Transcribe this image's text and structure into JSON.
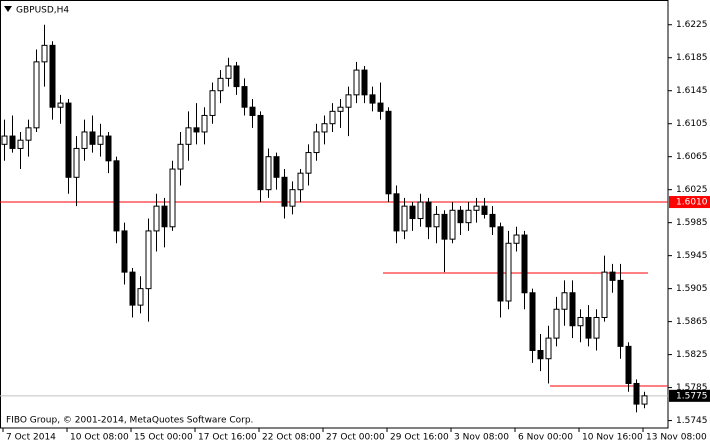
{
  "chart_data": {
    "type": "candlestick",
    "title": "GBPUSD,H4",
    "footer": "FIBO Group, © 2001-2014, MetaQuotes Software Corp.",
    "open": [
      1.608,
      1.609,
      1.6075,
      1.6085,
      1.61,
      1.618,
      1.62,
      1.6125,
      1.613,
      1.604,
      1.6075,
      1.6095,
      1.608,
      1.609,
      1.606,
      1.5975,
      1.5925,
      1.5885,
      1.5905,
      1.5975,
      1.6005,
      1.598,
      1.605,
      1.608,
      1.61,
      1.6095,
      1.6115,
      1.6145,
      1.616,
      1.6175,
      1.615,
      1.6125,
      1.6115,
      1.6025,
      1.6065,
      1.604,
      1.6005,
      1.6025,
      1.6045,
      1.607,
      1.6095,
      1.6105,
      1.612,
      1.6125,
      1.614,
      1.617,
      1.614,
      1.613,
      1.612,
      1.602,
      1.5975,
      1.6005,
      1.599,
      1.601,
      1.598,
      1.5995,
      1.5965,
      1.6,
      1.5985,
      1.6,
      1.6005,
      1.5995,
      1.598,
      1.589,
      1.596,
      1.597,
      1.59,
      1.583,
      1.582,
      1.5845,
      1.588,
      1.59,
      1.586,
      1.587,
      1.5845,
      1.587,
      1.5925,
      1.5915,
      1.5835,
      1.579,
      1.5765
    ],
    "high": [
      1.611,
      1.6115,
      1.6095,
      1.611,
      1.6195,
      1.6225,
      1.6205,
      1.614,
      1.6135,
      1.609,
      1.611,
      1.6115,
      1.6105,
      1.6095,
      1.6065,
      1.5985,
      1.593,
      1.592,
      1.599,
      1.602,
      1.6015,
      1.606,
      1.6095,
      1.612,
      1.613,
      1.6125,
      1.6155,
      1.617,
      1.6185,
      1.618,
      1.616,
      1.6135,
      1.612,
      1.6075,
      1.607,
      1.605,
      1.6035,
      1.605,
      1.608,
      1.6105,
      1.6115,
      1.613,
      1.6135,
      1.615,
      1.618,
      1.6175,
      1.615,
      1.6155,
      1.6125,
      1.603,
      1.6015,
      1.601,
      1.602,
      1.6015,
      1.6005,
      1.6,
      1.601,
      1.6005,
      1.601,
      1.6015,
      1.6015,
      1.6005,
      1.5985,
      1.5975,
      1.598,
      1.5975,
      1.5905,
      1.585,
      1.586,
      1.5895,
      1.5915,
      1.5915,
      1.588,
      1.5885,
      1.588,
      1.5945,
      1.5935,
      1.5935,
      1.584,
      1.5795,
      1.578
    ],
    "low": [
      1.606,
      1.607,
      1.605,
      1.6065,
      1.6095,
      1.615,
      1.611,
      1.6105,
      1.602,
      1.6005,
      1.606,
      1.607,
      1.6065,
      1.6045,
      1.596,
      1.591,
      1.587,
      1.5875,
      1.5865,
      1.595,
      1.5955,
      1.5975,
      1.603,
      1.606,
      1.608,
      1.608,
      1.6105,
      1.613,
      1.615,
      1.614,
      1.6115,
      1.61,
      1.601,
      1.6015,
      1.6025,
      1.599,
      1.5995,
      1.601,
      1.603,
      1.606,
      1.608,
      1.6095,
      1.61,
      1.609,
      1.613,
      1.613,
      1.612,
      1.611,
      1.601,
      1.596,
      1.5965,
      1.5975,
      1.598,
      1.5965,
      1.596,
      1.5925,
      1.596,
      1.597,
      1.5975,
      1.5985,
      1.599,
      1.597,
      1.587,
      1.588,
      1.595,
      1.588,
      1.5815,
      1.5805,
      1.579,
      1.5835,
      1.586,
      1.5845,
      1.584,
      1.5835,
      1.583,
      1.5865,
      1.59,
      1.582,
      1.578,
      1.5755,
      1.576
    ],
    "close": [
      1.609,
      1.6075,
      1.6085,
      1.61,
      1.618,
      1.62,
      1.6125,
      1.613,
      1.604,
      1.6075,
      1.6095,
      1.608,
      1.609,
      1.606,
      1.5975,
      1.5925,
      1.5885,
      1.5905,
      1.5975,
      1.6005,
      1.598,
      1.605,
      1.608,
      1.61,
      1.6095,
      1.6115,
      1.6145,
      1.616,
      1.6175,
      1.615,
      1.6125,
      1.6115,
      1.6025,
      1.6065,
      1.604,
      1.6005,
      1.6025,
      1.6045,
      1.607,
      1.6095,
      1.6105,
      1.612,
      1.6125,
      1.614,
      1.617,
      1.614,
      1.613,
      1.612,
      1.602,
      1.5975,
      1.6005,
      1.599,
      1.601,
      1.598,
      1.5995,
      1.5965,
      1.6,
      1.5985,
      1.6,
      1.6005,
      1.5995,
      1.598,
      1.589,
      1.596,
      1.597,
      1.59,
      1.583,
      1.582,
      1.5845,
      1.588,
      1.59,
      1.586,
      1.587,
      1.5845,
      1.587,
      1.5925,
      1.5915,
      1.5835,
      1.579,
      1.5765,
      1.5775
    ],
    "ylim": [
      1.5736,
      1.6255
    ],
    "yticks": [
      1.6225,
      1.6185,
      1.6145,
      1.6105,
      1.6065,
      1.6025,
      1.5985,
      1.5945,
      1.5905,
      1.5865,
      1.5825,
      1.5785,
      1.5745
    ],
    "xlabels": [
      "7 Oct 2014",
      "10 Oct 08:00",
      "15 Oct 00:00",
      "17 Oct 16:00",
      "22 Oct 08:00",
      "27 Oct 00:00",
      "29 Oct 16:00",
      "3 Nov 08:00",
      "6 Nov 00:00",
      "10 Nov 16:00",
      "13 Nov 08:00"
    ],
    "level": {
      "value": 1.601,
      "label": "1.6010",
      "color": "#ff0000"
    },
    "segments": [
      {
        "value": 1.5924,
        "color": "#ff0000"
      },
      {
        "value": 1.5787,
        "color": "#ff0000"
      }
    ],
    "bid": {
      "value": 1.5775,
      "color": "#c0c0c0"
    },
    "up_color": "#ffffff",
    "down_color": "#000000"
  }
}
